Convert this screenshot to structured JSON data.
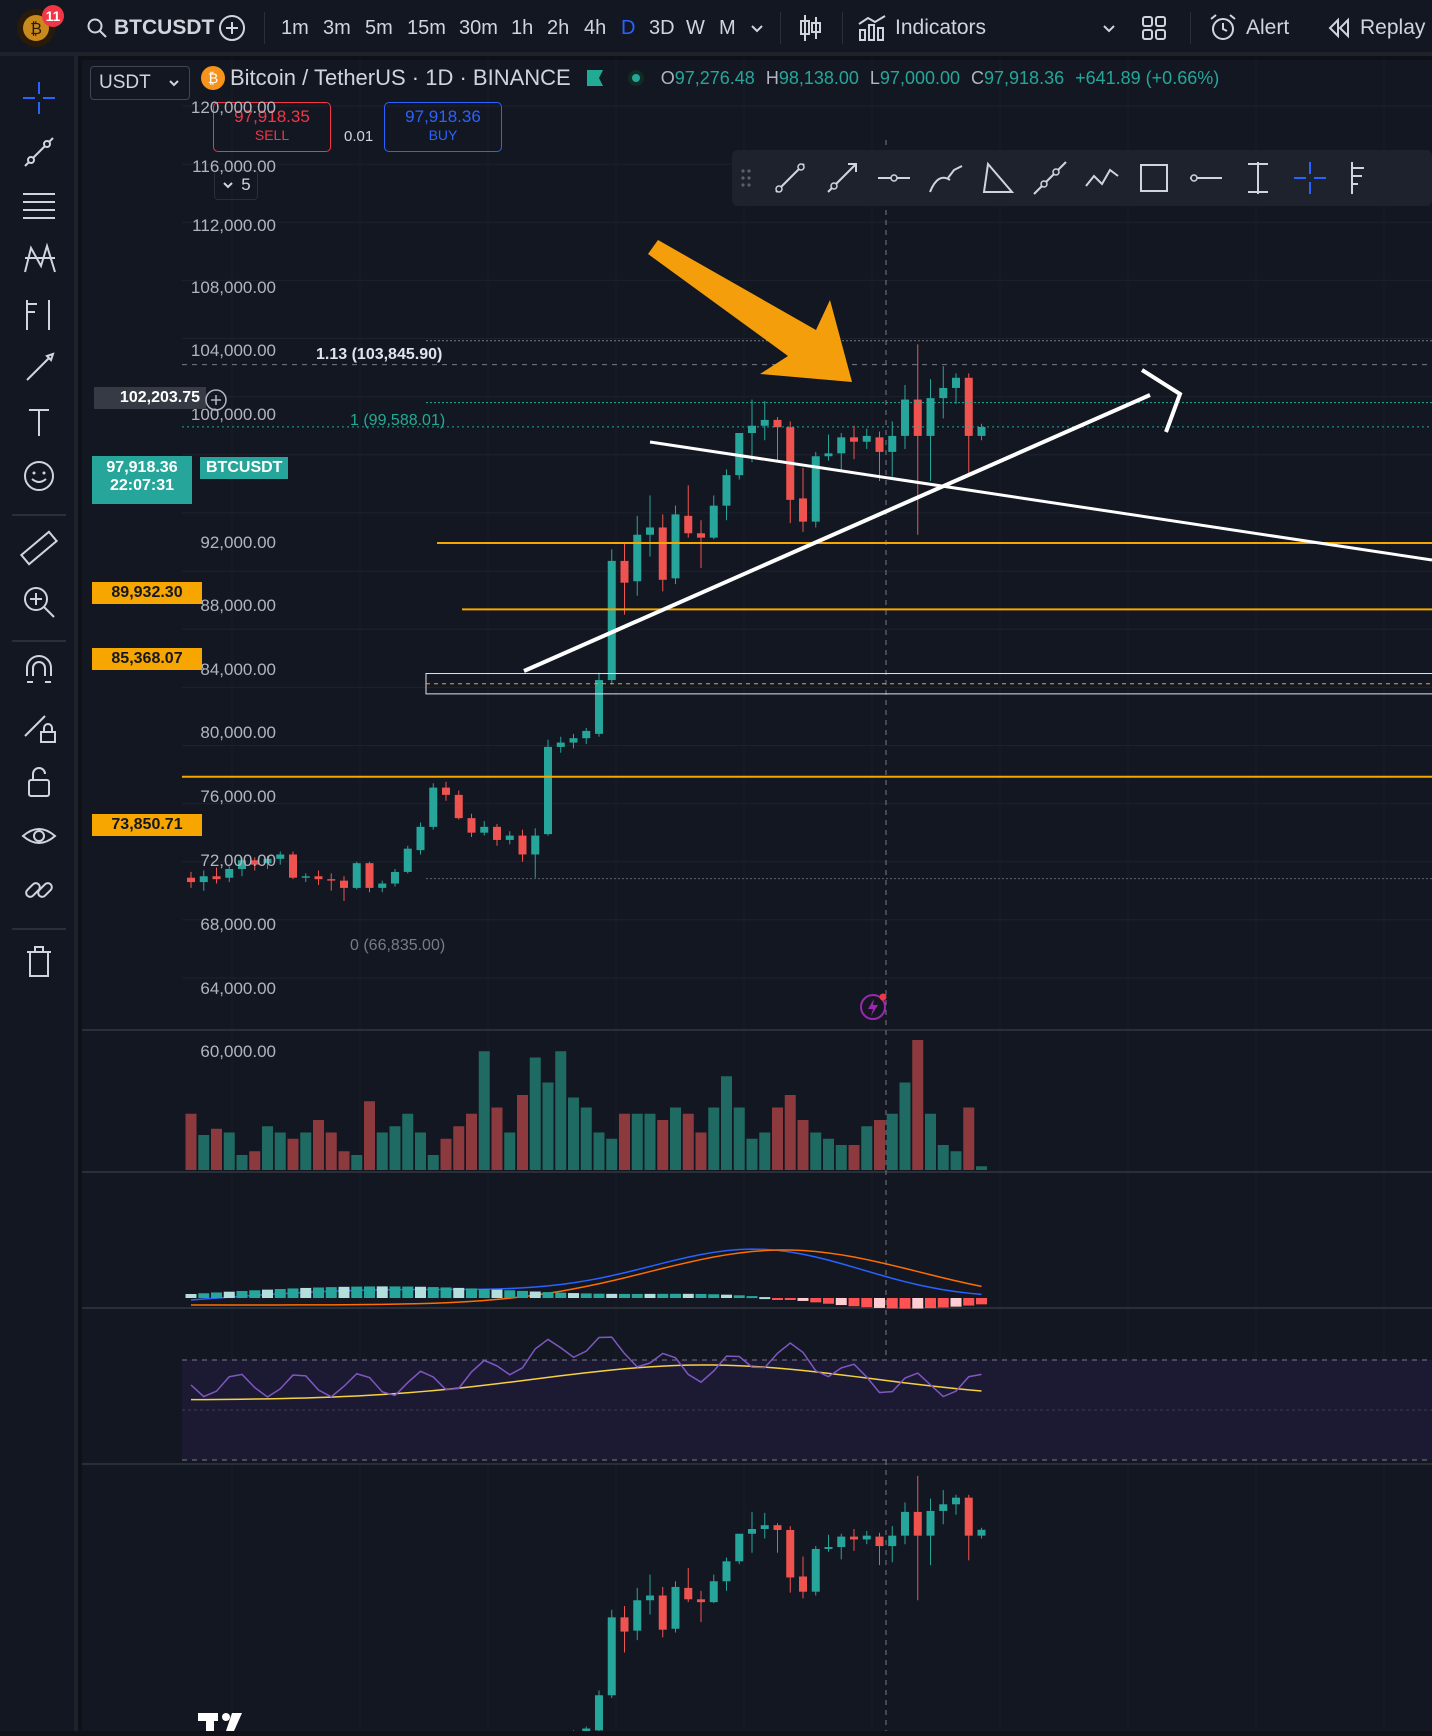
{
  "topbar": {
    "notification_count": "11",
    "symbol": "BTCUSDT",
    "timeframes": [
      "1m",
      "3m",
      "5m",
      "15m",
      "30m",
      "1h",
      "2h",
      "4h",
      "D",
      "3D",
      "W",
      "M"
    ],
    "active_timeframe": "D",
    "indicators_label": "Indicators",
    "alert_label": "Alert",
    "replay_label": "Replay"
  },
  "legend": {
    "currency": "USDT",
    "title": "Bitcoin / TetherUS · 1D · BINANCE",
    "open_prefix": "O",
    "open": "97,276.48",
    "high_prefix": "H",
    "high": "98,138.00",
    "low_prefix": "L",
    "low": "97,000.00",
    "close_prefix": "C",
    "close": "97,918.36",
    "change": "+641.89 (+0.66%)"
  },
  "trade": {
    "sell_price": "97,918.35",
    "sell_label": "SELL",
    "spread": "0.01",
    "buy_price": "97,918.36",
    "buy_label": "BUY",
    "collapse_count": "5"
  },
  "price_axis": {
    "labels": [
      "120,000.00",
      "116,000.00",
      "112,000.00",
      "108,000.00",
      "104,000.00",
      "100,000.00",
      "92,000.00",
      "88,000.00",
      "84,000.00",
      "80,000.00",
      "76,000.00",
      "72,000.00",
      "68,000.00",
      "64,000.00",
      "60,000.00"
    ],
    "crosshair_price": "102,203.75",
    "last_price": "97,918.36",
    "countdown": "22:07:31",
    "symbol_tag": "BTCUSDT",
    "level_tags": [
      "89,932.30",
      "85,368.07",
      "73,850.71"
    ]
  },
  "fib": {
    "level_113": "1.13 (103,845.90)",
    "level_1": "1 (99,588.01)",
    "level_0": "0 (66,835.00)"
  },
  "colors": {
    "bull": "#26a69a",
    "bear": "#ef5350",
    "orange": "#f7a600",
    "background": "#131722",
    "accent_blue": "#2962ff"
  },
  "icons": {
    "left_toolbar": [
      "crosshair-icon",
      "trend-line-icon",
      "horizontal-lines-icon",
      "pattern-icon",
      "prediction-icon",
      "brush-icon",
      "text-icon",
      "emoji-icon",
      "ruler-icon",
      "zoom-in-icon",
      "magnet-icon",
      "lock-drawing-icon",
      "lock-icon",
      "eye-icon",
      "link-icon",
      "trash-icon"
    ]
  }
}
